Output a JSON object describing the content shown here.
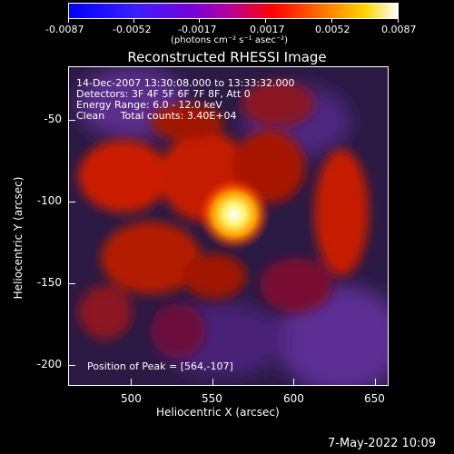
{
  "colorbar": {
    "ticks": [
      "-0.0087",
      "-0.0052",
      "-0.0017",
      "0.0017",
      "0.0052",
      "0.0087"
    ],
    "units": "(photons cm⁻² s⁻¹ asec⁻²)"
  },
  "title": "Reconstructed RHESSI Image",
  "info": {
    "line1": "14-Dec-2007 13:30:08.000 to 13:33:32.000",
    "line2": "Detectors: 3F 4F 5F 6F 7F 8F, Att 0",
    "line3": "Energy Range: 6.0 - 12.0 keV",
    "line4": "Clean     Total counts: 3.40E+04",
    "peak": "Position of Peak = [564,-107]"
  },
  "axes": {
    "xlabel": "Heliocentric X (arcsec)",
    "ylabel": "Heliocentric Y (arcsec)",
    "xticks": [
      "500",
      "550",
      "600",
      "650"
    ],
    "yticks": [
      "-50",
      "-100",
      "-150",
      "-200"
    ]
  },
  "footer": {
    "date": "7-May-2022 10:09"
  },
  "colors": {
    "background": "#000000",
    "peak": "#ffffff",
    "mid": "#ff3000",
    "low": "#4a2a7a"
  }
}
